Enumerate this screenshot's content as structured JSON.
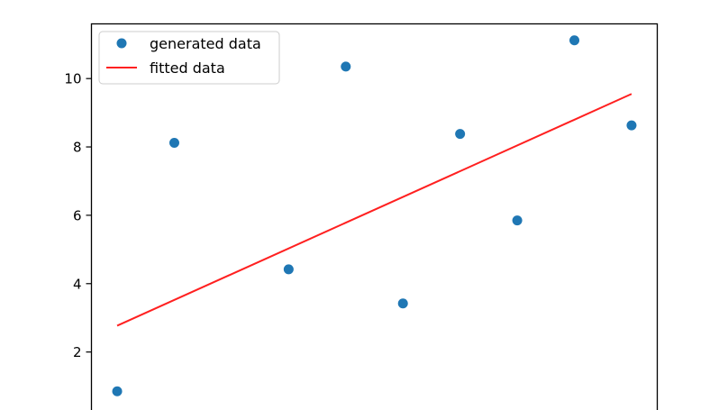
{
  "chart_data": {
    "type": "scatter",
    "x": [
      0,
      1,
      2,
      3,
      4,
      5,
      6,
      7,
      8,
      9
    ],
    "yticks": [
      2,
      4,
      6,
      8,
      10
    ],
    "ylim": [
      0,
      11.6
    ],
    "xlim": [
      -0.45,
      9.45
    ],
    "grid": false,
    "legend_position": "top-left",
    "series": [
      {
        "name": "generated data",
        "kind": "scatter",
        "color": "#1f77b4",
        "values": [
          0.85,
          8.12,
          null,
          4.42,
          10.35,
          3.42,
          8.38,
          5.85,
          11.12,
          8.63
        ]
      },
      {
        "name": "fitted data",
        "kind": "line",
        "color": "#ff2020",
        "x": [
          0,
          9
        ],
        "values": [
          2.77,
          9.55
        ]
      }
    ]
  }
}
